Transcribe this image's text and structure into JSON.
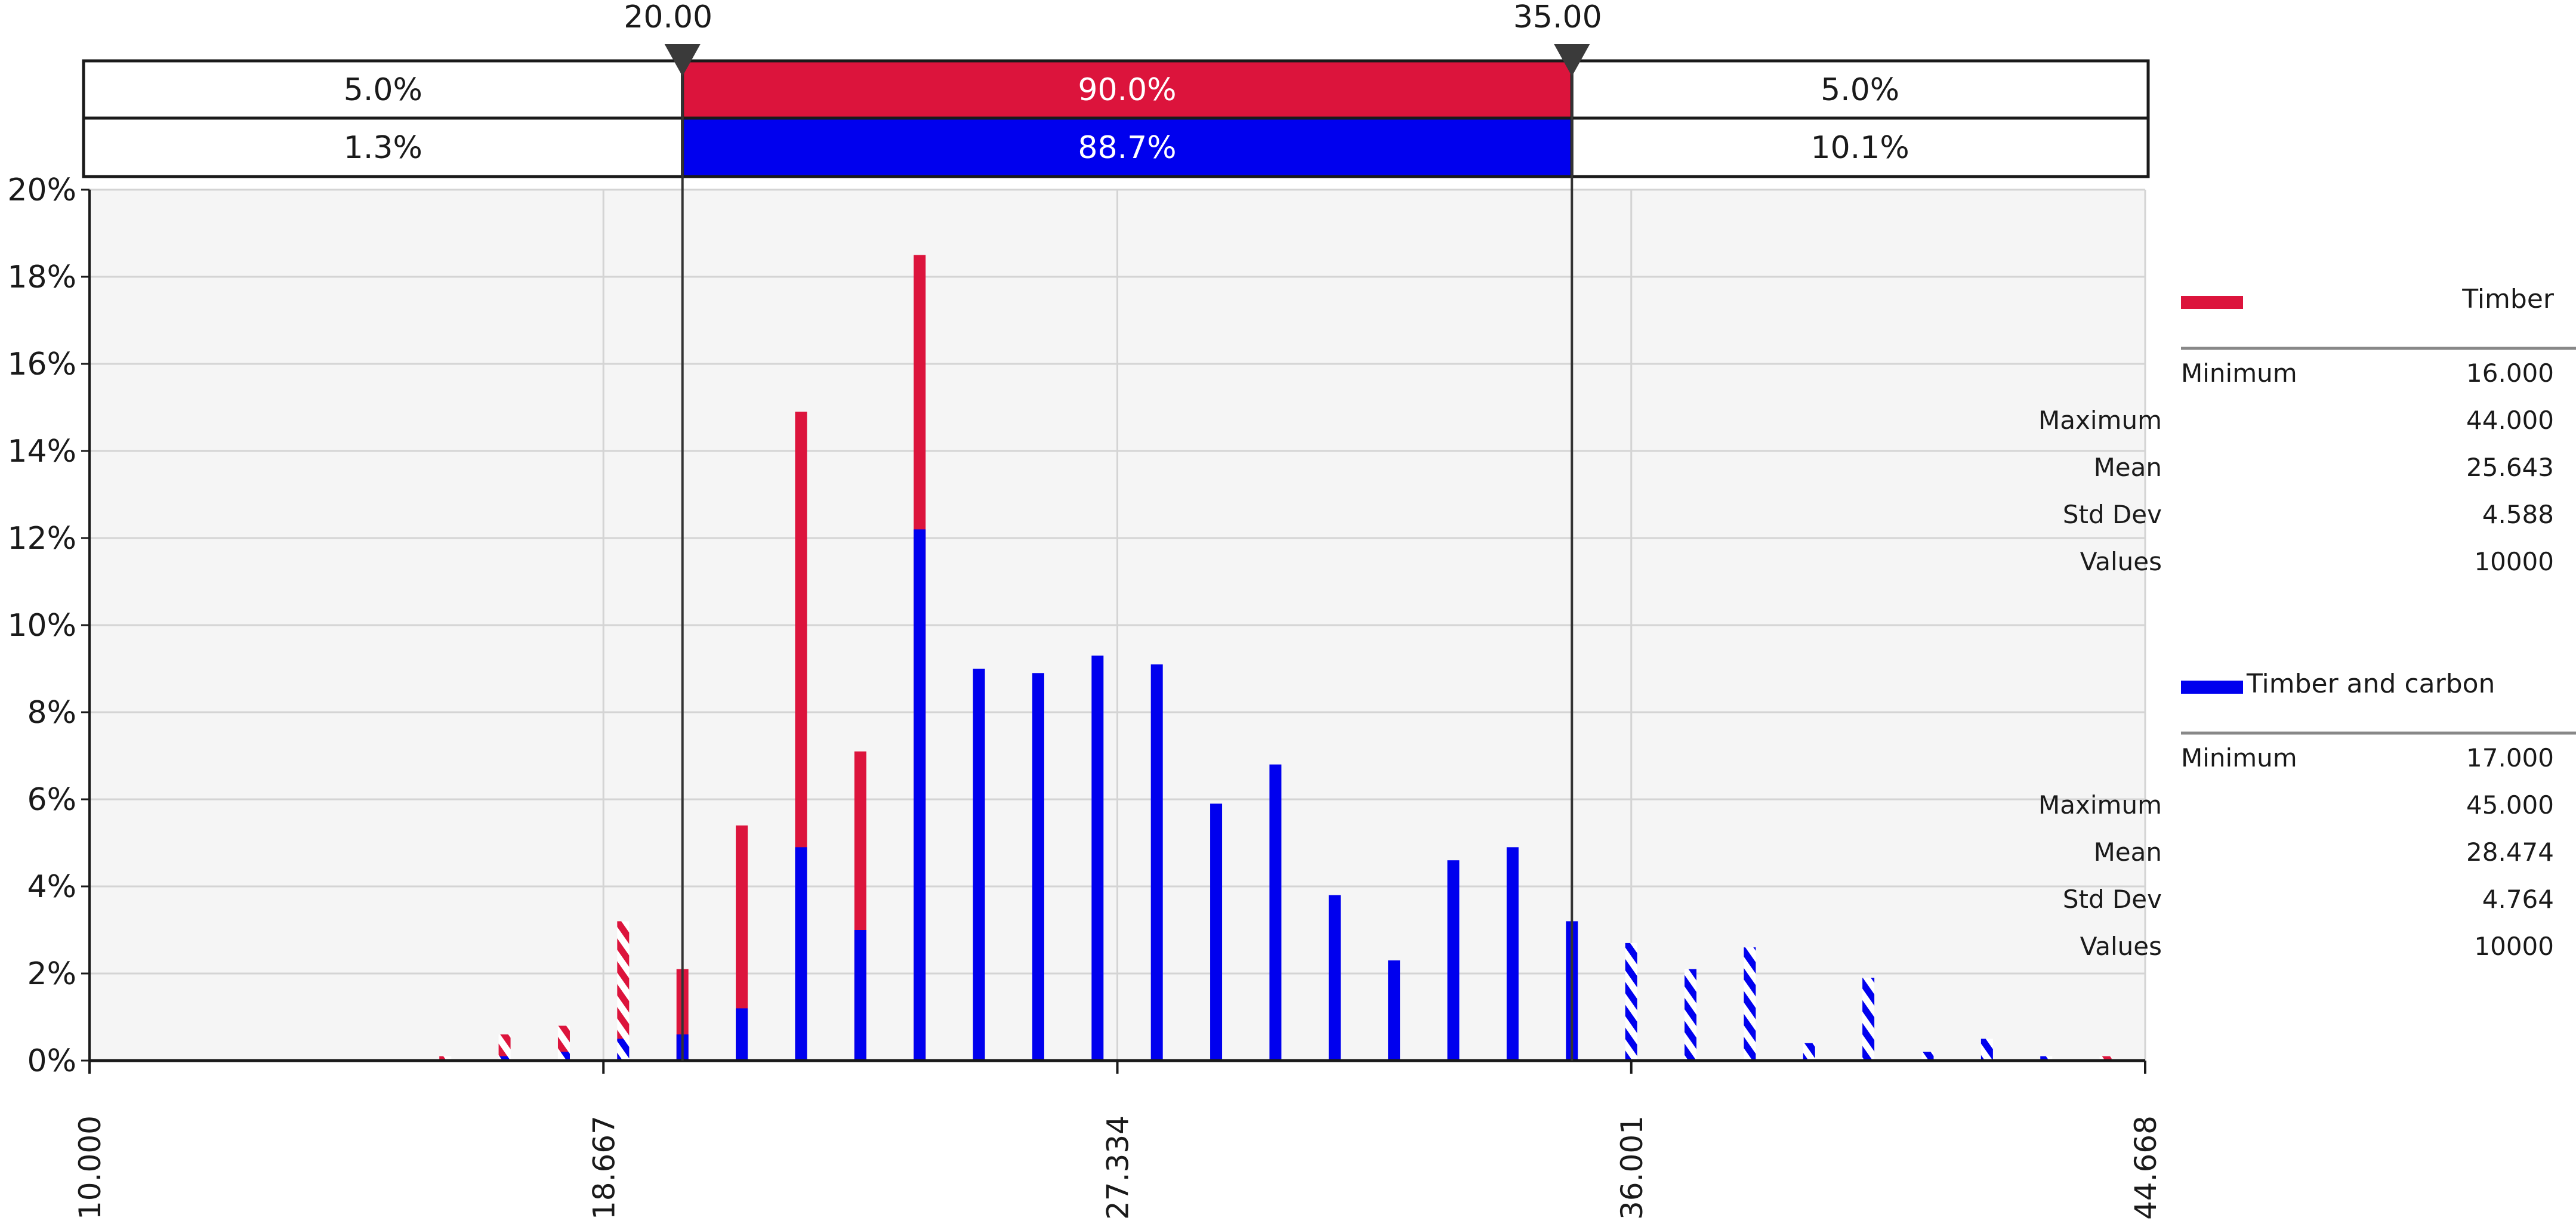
{
  "chart_data": {
    "type": "bar",
    "title": "",
    "xlabel": "",
    "ylabel": "",
    "xlim": [
      10.0,
      44.668
    ],
    "ylim": [
      0,
      20
    ],
    "grid": true,
    "legend_position": "right",
    "x_ticks": [
      "10.000",
      "18.667",
      "27.334",
      "36.001",
      "44.668"
    ],
    "y_ticks": [
      "0%",
      "2%",
      "4%",
      "6%",
      "8%",
      "10%",
      "12%",
      "14%",
      "16%",
      "18%",
      "20%"
    ],
    "delimiters": {
      "left_label": "20.00",
      "right_label": "35.00",
      "left_value": 20.0,
      "right_value": 35.0
    },
    "probability_bands": {
      "series_a": [
        "5.0%",
        "90.0%",
        "5.0%"
      ],
      "series_b": [
        "1.3%",
        "88.7%",
        "10.1%"
      ]
    },
    "series": [
      {
        "name": "Timber",
        "color": "#dc143c",
        "x": [
          16,
          17,
          18,
          19,
          20,
          21,
          22,
          23,
          24,
          28,
          44
        ],
        "values": [
          0.1,
          0.6,
          0.8,
          3.2,
          2.1,
          5.4,
          14.9,
          7.1,
          18.5,
          0,
          0.1
        ]
      },
      {
        "name": "Timber and carbon",
        "color": "#0000ee",
        "x": [
          17,
          18,
          19,
          20,
          21,
          22,
          23,
          24,
          25,
          26,
          27,
          28,
          29,
          30,
          31,
          32,
          33,
          34,
          35,
          36,
          37,
          38,
          39,
          40,
          41,
          42,
          43
        ],
        "values": [
          0.1,
          0.2,
          0.5,
          0.6,
          1.2,
          4.9,
          3.0,
          12.2,
          9.0,
          8.9,
          9.3,
          9.1,
          5.9,
          6.8,
          3.8,
          2.3,
          4.6,
          4.9,
          3.2,
          2.7,
          2.1,
          2.6,
          0.4,
          1.9,
          0.2,
          0.5,
          0.1
        ]
      }
    ],
    "legend": [
      {
        "name": "Timber",
        "color": "#dc143c",
        "stats": [
          {
            "label": "Minimum",
            "value": "16.000"
          },
          {
            "label": "Maximum",
            "value": "44.000"
          },
          {
            "label": "Mean",
            "value": "25.643"
          },
          {
            "label": "Std Dev",
            "value": "4.588"
          },
          {
            "label": "Values",
            "value": "10000"
          }
        ]
      },
      {
        "name": "Timber and carbon",
        "color": "#0000ee",
        "stats": [
          {
            "label": "Minimum",
            "value": "17.000"
          },
          {
            "label": "Maximum",
            "value": "45.000"
          },
          {
            "label": "Mean",
            "value": "28.474"
          },
          {
            "label": "Std Dev",
            "value": "4.764"
          },
          {
            "label": "Values",
            "value": "10000"
          }
        ]
      }
    ]
  }
}
